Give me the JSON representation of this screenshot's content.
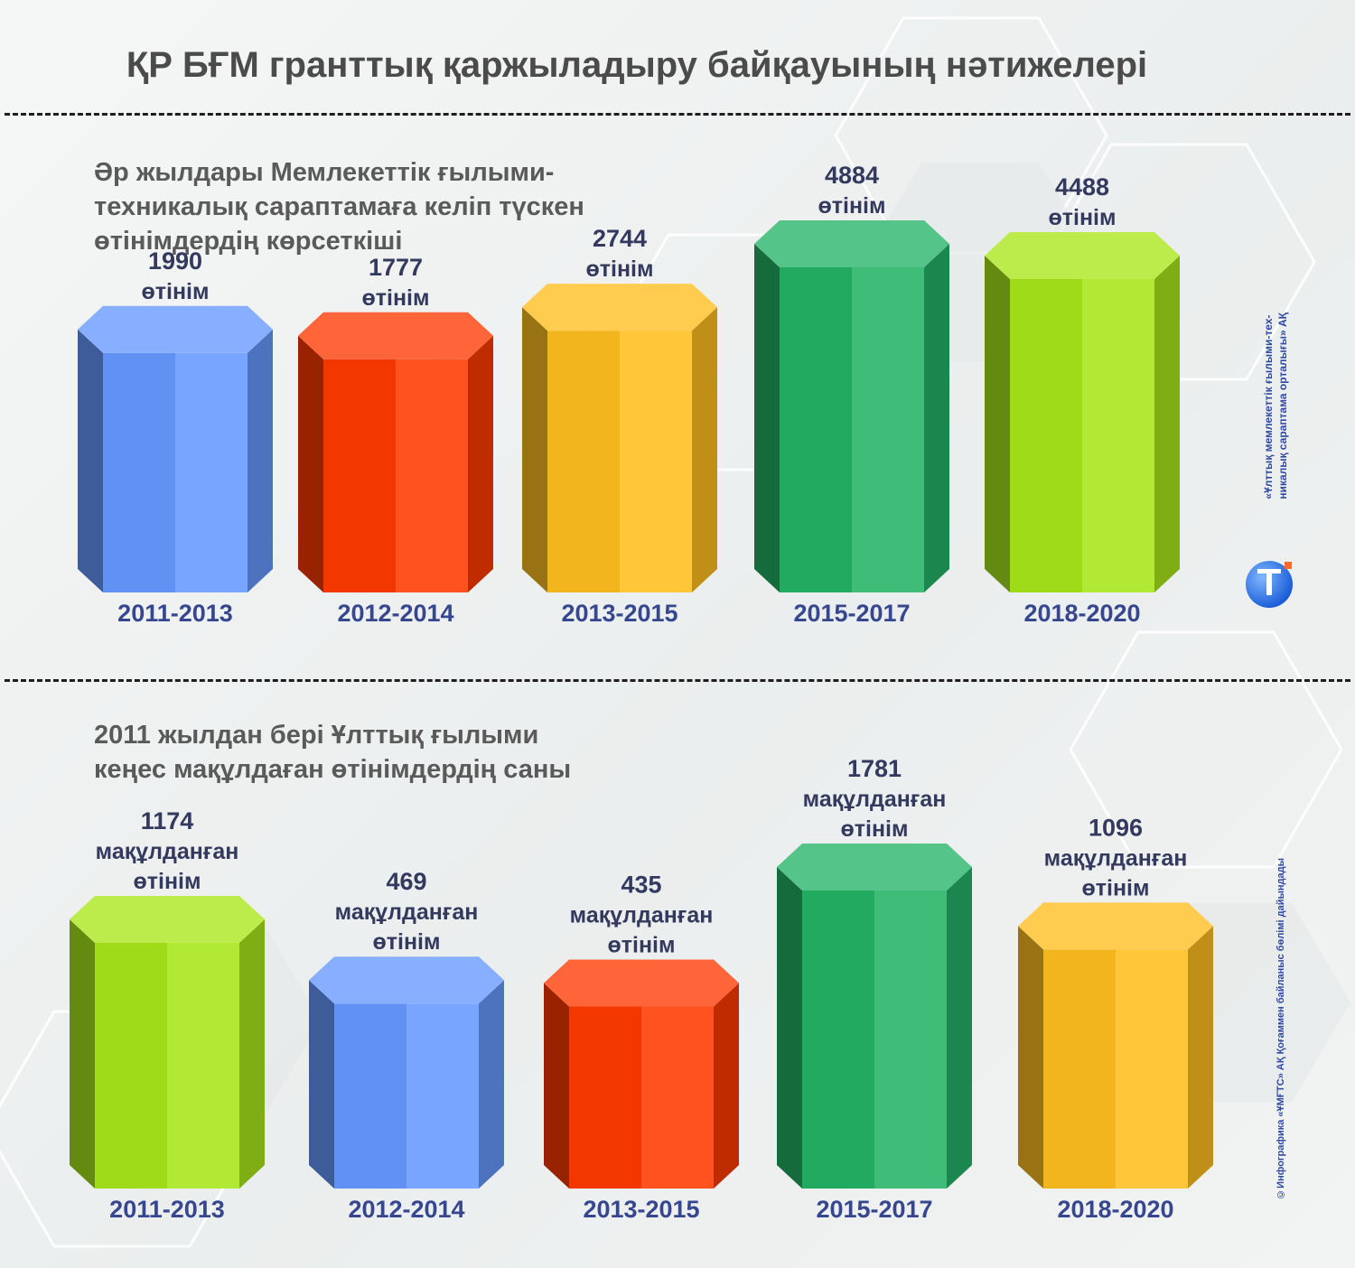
{
  "title": "ҚР БҒМ гранттық қаржыладыру байқауының нәтижелері",
  "organization": {
    "line1": "«Ұлттық мемлекеттік ғылыми-тех-",
    "line2": "никалық сараптама орталығы» АҚ"
  },
  "copyright": "©Инфографика «ҰМҒТС» АҚ Қоғаммен байланыс бөлімі дайындады",
  "colors": {
    "blue": "#6699ff",
    "red": "#ff3a00",
    "orange": "#ffbe1f",
    "green": "#24b366",
    "lime": "#a8e61a",
    "value_text": "#34395e",
    "label_text": "#36478f"
  },
  "chart_data": [
    {
      "type": "bar",
      "title_lines": [
        "Әр жылдары Мемлекеттік ғылыми-",
        "техникалық сараптамаға келіп түскен",
        "өтінімдердің көрсеткіші"
      ],
      "categories": [
        "2011-2013",
        "2012-2014",
        "2013-2015",
        "2015-2017",
        "2018-2020"
      ],
      "values": [
        1990,
        1777,
        2744,
        4884,
        4488
      ],
      "value_unit": "өтінім",
      "colors": [
        "blue",
        "red",
        "orange",
        "green",
        "lime"
      ]
    },
    {
      "type": "bar",
      "title_lines": [
        "2011 жылдан бері Ұлттық ғылыми",
        "кеңес мақұлдаған өтінімдердің саны"
      ],
      "categories": [
        "2011-2013",
        "2012-2014",
        "2013-2015",
        "2015-2017",
        "2018-2020"
      ],
      "values": [
        1174,
        469,
        435,
        1781,
        1096
      ],
      "value_unit_lines": [
        "мақұлданған",
        "өтінім"
      ],
      "colors": [
        "lime",
        "blue",
        "red",
        "green",
        "orange"
      ]
    }
  ]
}
